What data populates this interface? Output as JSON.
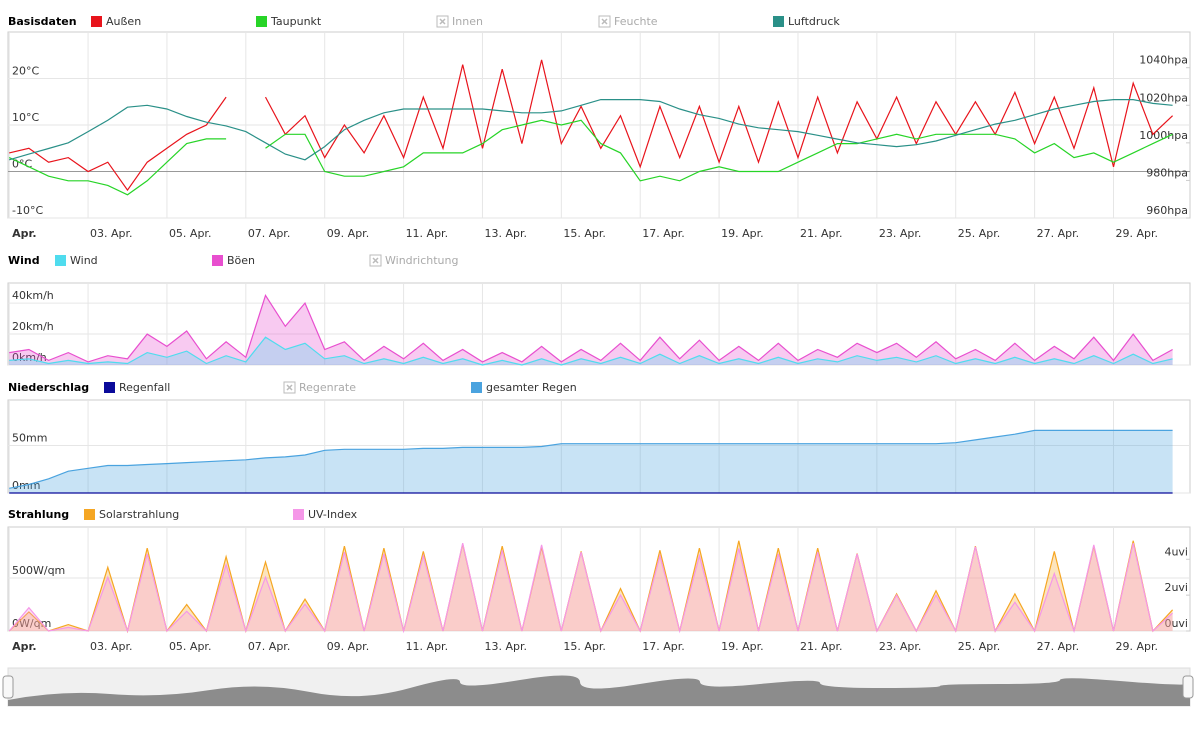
{
  "chart_data": [
    {
      "type": "line",
      "title": "Basisdaten",
      "x": [
        1,
        1.5,
        2,
        2.5,
        3,
        3.5,
        4,
        4.5,
        5,
        5.5,
        6,
        6.5,
        7,
        7.5,
        8,
        8.5,
        9,
        9.5,
        10,
        10.5,
        11,
        11.5,
        12,
        12.5,
        13,
        13.5,
        14,
        14.5,
        15,
        15.5,
        16,
        16.5,
        17,
        17.5,
        18,
        18.5,
        19,
        19.5,
        20,
        20.5,
        21,
        21.5,
        22,
        22.5,
        23,
        23.5,
        24,
        24.5,
        25,
        25.5,
        26,
        26.5,
        27,
        27.5,
        28,
        28.5,
        29,
        29.5,
        30,
        30.5
      ],
      "xlim": [
        0.97,
        30.94
      ],
      "xticks": [
        {
          "value": 1,
          "label": "Apr."
        },
        {
          "value": 3,
          "label": "03. Apr."
        },
        {
          "value": 5,
          "label": "05. Apr."
        },
        {
          "value": 7,
          "label": "07. Apr."
        },
        {
          "value": 9,
          "label": "09. Apr."
        },
        {
          "value": 11,
          "label": "11. Apr."
        },
        {
          "value": 13,
          "label": "13. Apr."
        },
        {
          "value": 15,
          "label": "15. Apr."
        },
        {
          "value": 17,
          "label": "17. Apr."
        },
        {
          "value": 19,
          "label": "19. Apr."
        },
        {
          "value": 21,
          "label": "21. Apr."
        },
        {
          "value": 23,
          "label": "23. Apr."
        },
        {
          "value": 25,
          "label": "25. Apr."
        },
        {
          "value": 27,
          "label": "27. Apr."
        },
        {
          "value": 29,
          "label": "29. Apr."
        }
      ],
      "ylim": [
        -10,
        30
      ],
      "yticks": [
        {
          "value": -10,
          "label": "-10°C"
        },
        {
          "value": 0,
          "label": "0°C"
        },
        {
          "value": 10,
          "label": "10°C"
        },
        {
          "value": 20,
          "label": "20°C"
        }
      ],
      "y2lim": [
        960,
        1059
      ],
      "y2ticks": [
        {
          "value": 960,
          "label": "960hpa"
        },
        {
          "value": 980,
          "label": "980hpa"
        },
        {
          "value": 1000,
          "label": "1000hpa"
        },
        {
          "value": 1020,
          "label": "1020hpa"
        },
        {
          "value": 1040,
          "label": "1040hpa"
        }
      ],
      "series": [
        {
          "name": "Außen",
          "color": "#e8141c",
          "values": [
            4,
            5,
            2,
            3,
            0,
            2,
            -4,
            2,
            5,
            8,
            10,
            16,
            null,
            16,
            8,
            12,
            3,
            10,
            4,
            12,
            3,
            16,
            5,
            23,
            5,
            22,
            6,
            24,
            6,
            14,
            5,
            12,
            1,
            14,
            3,
            14,
            2,
            14,
            2,
            15,
            3,
            16,
            4,
            15,
            7,
            16,
            6,
            15,
            8,
            15,
            8,
            17,
            6,
            16,
            5,
            18,
            1,
            19,
            8,
            12
          ]
        },
        {
          "name": "Taupunkt",
          "color": "#27d427",
          "values": [
            3,
            1,
            -1,
            -2,
            -2,
            -3,
            -5,
            -2,
            2,
            6,
            7,
            7,
            null,
            5,
            8,
            8,
            0,
            -1,
            -1,
            0,
            1,
            4,
            4,
            4,
            6,
            9,
            10,
            11,
            10,
            11,
            6,
            4,
            -2,
            -1,
            -2,
            0,
            1,
            0,
            0,
            0,
            2,
            4,
            6,
            6,
            7,
            8,
            7,
            8,
            8,
            8,
            8,
            7,
            4,
            6,
            3,
            4,
            2,
            4,
            6,
            8
          ]
        },
        {
          "name": "Luftdruck",
          "color": "#2a9088",
          "axis": "y2",
          "values": [
            991,
            994,
            997,
            1000,
            1006,
            1012,
            1019,
            1020,
            1018,
            1014,
            1011,
            1009,
            1006,
            1000,
            994,
            991,
            998,
            1007,
            1012,
            1016,
            1018,
            1018,
            1018,
            1018,
            1018,
            1017,
            1016,
            1016,
            1017,
            1020,
            1023,
            1023,
            1023,
            1022,
            1018,
            1015,
            1013,
            1010,
            1008,
            1007,
            1006,
            1004,
            1002,
            1000,
            999,
            998,
            999,
            1001,
            1004,
            1007,
            1010,
            1012,
            1015,
            1018,
            1020,
            1022,
            1023,
            1023,
            1021,
            1020
          ]
        }
      ],
      "hidden_series": [
        "Innen",
        "Feuchte"
      ]
    },
    {
      "type": "area",
      "title": "Wind",
      "x": [
        1,
        1.5,
        2,
        2.5,
        3,
        3.5,
        4,
        4.5,
        5,
        5.5,
        6,
        6.5,
        7,
        7.5,
        8,
        8.5,
        9,
        9.5,
        10,
        10.5,
        11,
        11.5,
        12,
        12.5,
        13,
        13.5,
        14,
        14.5,
        15,
        15.5,
        16,
        16.5,
        17,
        17.5,
        18,
        18.5,
        19,
        19.5,
        20,
        20.5,
        21,
        21.5,
        22,
        22.5,
        23,
        23.5,
        24,
        24.5,
        25,
        25.5,
        26,
        26.5,
        27,
        27.5,
        28,
        28.5,
        29,
        29.5,
        30,
        30.5
      ],
      "xlim": [
        0.97,
        30.94
      ],
      "ylim": [
        0,
        53
      ],
      "yticks": [
        {
          "value": 0,
          "label": "0km/h"
        },
        {
          "value": 20,
          "label": "20km/h"
        },
        {
          "value": 40,
          "label": "40km/h"
        }
      ],
      "series": [
        {
          "name": "Wind",
          "color": "#4fdcee",
          "values": [
            3,
            4,
            1,
            3,
            1,
            2,
            1,
            8,
            5,
            9,
            1,
            6,
            2,
            18,
            10,
            14,
            4,
            6,
            1,
            4,
            1,
            5,
            1,
            4,
            0,
            3,
            0,
            4,
            0,
            4,
            1,
            5,
            1,
            7,
            1,
            6,
            1,
            4,
            1,
            5,
            1,
            4,
            2,
            6,
            3,
            5,
            2,
            6,
            1,
            4,
            1,
            5,
            1,
            4,
            1,
            6,
            1,
            7,
            1,
            4
          ]
        },
        {
          "name": "Böen",
          "color": "#e84fcf",
          "values": [
            8,
            10,
            3,
            8,
            2,
            6,
            4,
            20,
            12,
            22,
            4,
            15,
            5,
            45,
            25,
            40,
            10,
            15,
            3,
            12,
            4,
            14,
            3,
            10,
            2,
            8,
            2,
            12,
            2,
            10,
            3,
            14,
            3,
            18,
            4,
            16,
            3,
            12,
            3,
            14,
            3,
            10,
            5,
            14,
            8,
            14,
            5,
            15,
            4,
            10,
            3,
            14,
            3,
            12,
            4,
            18,
            3,
            20,
            3,
            10
          ]
        }
      ],
      "hidden_series": [
        "Windrichtung"
      ]
    },
    {
      "type": "area",
      "title": "Niederschlag",
      "x": [
        1,
        1.5,
        2,
        2.5,
        3,
        3.5,
        4,
        4.5,
        5,
        5.5,
        6,
        6.5,
        7,
        7.5,
        8,
        8.5,
        9,
        9.5,
        10,
        10.5,
        11,
        11.5,
        12,
        12.5,
        13,
        13.5,
        14,
        14.5,
        15,
        15.5,
        16,
        16.5,
        17,
        17.5,
        18,
        18.5,
        19,
        19.5,
        20,
        20.5,
        21,
        21.5,
        22,
        22.5,
        23,
        23.5,
        24,
        24.5,
        25,
        25.5,
        26,
        26.5,
        27,
        27.5,
        28,
        28.5,
        29,
        29.5,
        30,
        30.5
      ],
      "xlim": [
        0.97,
        30.94
      ],
      "ylim": [
        0,
        98
      ],
      "yticks": [
        {
          "value": 0,
          "label": "0mm"
        },
        {
          "value": 50,
          "label": "50mm"
        }
      ],
      "series": [
        {
          "name": "Regenfall",
          "color": "#0a0a9a",
          "type": "line",
          "values": [
            0,
            0,
            0,
            0,
            0,
            0,
            0,
            0,
            0,
            0,
            0,
            0,
            0,
            0,
            0,
            0,
            0,
            0,
            0,
            0,
            0,
            0,
            0,
            0,
            0,
            0,
            0,
            0,
            0,
            0,
            0,
            0,
            0,
            0,
            0,
            0,
            0,
            0,
            0,
            0,
            0,
            0,
            0,
            0,
            0,
            0,
            0,
            0,
            0,
            0,
            0,
            0,
            0,
            0,
            0,
            0,
            0,
            0,
            0,
            0
          ]
        },
        {
          "name": "gesamter Regen",
          "color": "#4aa3df",
          "values": [
            5,
            9,
            15,
            23,
            26,
            29,
            29,
            30,
            31,
            32,
            33,
            34,
            35,
            37,
            38,
            40,
            45,
            46,
            46,
            46,
            46,
            47,
            47,
            48,
            48,
            48,
            48,
            49,
            52,
            52,
            52,
            52,
            52,
            52,
            52,
            52,
            52,
            52,
            52,
            52,
            52,
            52,
            52,
            52,
            52,
            52,
            52,
            52,
            53,
            56,
            59,
            62,
            66,
            66,
            66,
            66,
            66,
            66,
            66,
            66
          ]
        }
      ],
      "hidden_series": [
        "Regenrate"
      ]
    },
    {
      "type": "area",
      "title": "Strahlung",
      "x": [
        1,
        1.5,
        2,
        2.5,
        3,
        3.5,
        4,
        4.5,
        5,
        5.5,
        6,
        6.5,
        7,
        7.5,
        8,
        8.5,
        9,
        9.5,
        10,
        10.5,
        11,
        11.5,
        12,
        12.5,
        13,
        13.5,
        14,
        14.5,
        15,
        15.5,
        16,
        16.5,
        17,
        17.5,
        18,
        18.5,
        19,
        19.5,
        20,
        20.5,
        21,
        21.5,
        22,
        22.5,
        23,
        23.5,
        24,
        24.5,
        25,
        25.5,
        26,
        26.5,
        27,
        27.5,
        28,
        28.5,
        29,
        29.5,
        30,
        30.5
      ],
      "xlim": [
        0.97,
        30.94
      ],
      "xticks": [
        {
          "value": 1,
          "label": "Apr."
        },
        {
          "value": 3,
          "label": "03. Apr."
        },
        {
          "value": 5,
          "label": "05. Apr."
        },
        {
          "value": 7,
          "label": "07. Apr."
        },
        {
          "value": 9,
          "label": "09. Apr."
        },
        {
          "value": 11,
          "label": "11. Apr."
        },
        {
          "value": 13,
          "label": "13. Apr."
        },
        {
          "value": 15,
          "label": "15. Apr."
        },
        {
          "value": 17,
          "label": "17. Apr."
        },
        {
          "value": 19,
          "label": "19. Apr."
        },
        {
          "value": 21,
          "label": "21. Apr."
        },
        {
          "value": 23,
          "label": "23. Apr."
        },
        {
          "value": 25,
          "label": "25. Apr."
        },
        {
          "value": 27,
          "label": "27. Apr."
        },
        {
          "value": 29,
          "label": "29. Apr."
        }
      ],
      "ylim": [
        0,
        980
      ],
      "yticks": [
        {
          "value": 0,
          "label": "0W/qm"
        },
        {
          "value": 500,
          "label": "500W/qm"
        }
      ],
      "y2lim": [
        0,
        5.8
      ],
      "y2ticks": [
        {
          "value": 0,
          "label": "0uvi"
        },
        {
          "value": 2,
          "label": "2uvi"
        },
        {
          "value": 4,
          "label": "4uvi"
        }
      ],
      "series": [
        {
          "name": "Solarstrahlung",
          "color": "#f5a623",
          "values": [
            0,
            180,
            0,
            60,
            0,
            600,
            0,
            780,
            0,
            250,
            0,
            700,
            0,
            650,
            0,
            300,
            0,
            800,
            0,
            780,
            0,
            750,
            0,
            820,
            0,
            800,
            0,
            790,
            0,
            750,
            0,
            400,
            0,
            760,
            0,
            780,
            0,
            850,
            0,
            780,
            0,
            780,
            0,
            730,
            0,
            350,
            0,
            380,
            0,
            800,
            0,
            350,
            0,
            750,
            0,
            800,
            0,
            850,
            0,
            200
          ]
        },
        {
          "name": "UV-Index",
          "color": "#f597e8",
          "axis": "y2",
          "values": [
            0,
            1.3,
            0,
            0.2,
            0,
            3,
            0,
            4.3,
            0,
            1.1,
            0,
            3.7,
            0,
            3,
            0,
            1.5,
            0,
            4.4,
            0,
            4.3,
            0,
            4.2,
            0,
            4.9,
            0,
            4.5,
            0,
            4.8,
            0,
            4.4,
            0,
            2,
            0,
            4.2,
            0,
            4.2,
            0,
            4.6,
            0,
            4.3,
            0,
            4.4,
            0,
            4.3,
            0,
            2,
            0,
            2,
            0,
            4.7,
            0,
            1.6,
            0,
            3.2,
            0,
            4.8,
            0,
            4.9,
            0,
            1
          ]
        }
      ],
      "hidden_series": []
    }
  ]
}
